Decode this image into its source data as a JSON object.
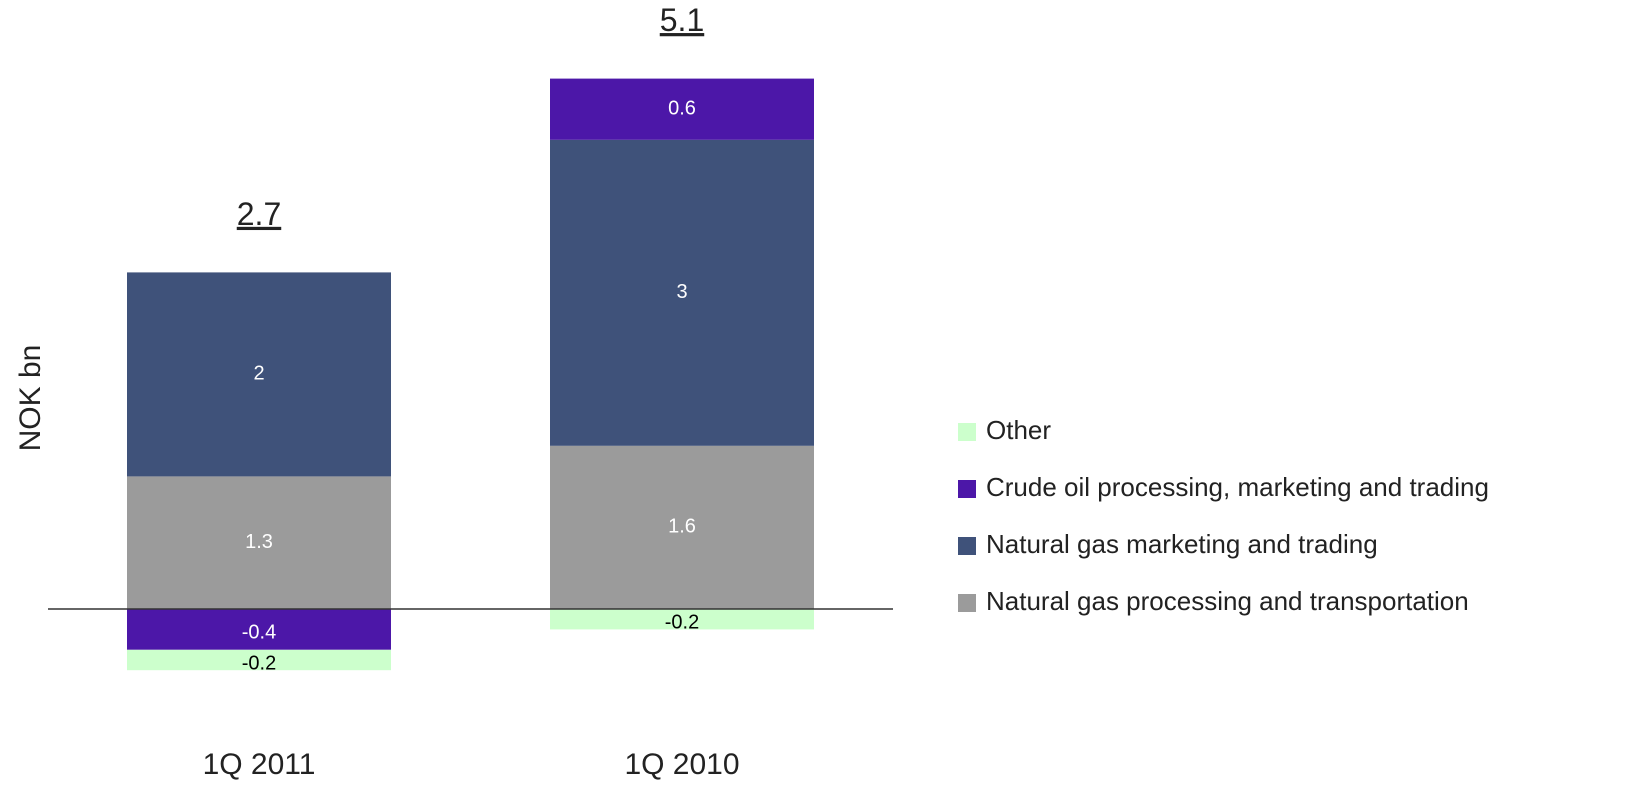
{
  "chart_data": {
    "type": "stacked_bar",
    "ylabel": "NOK bn",
    "categories": [
      "1Q 2011",
      "1Q 2010"
    ],
    "series": [
      {
        "name": "Natural gas processing and transportation",
        "color": "#9b9b9b",
        "values": [
          1.3,
          1.6
        ]
      },
      {
        "name": "Natural gas marketing and trading",
        "color": "#3f527a",
        "values": [
          2.0,
          3.0
        ]
      },
      {
        "name": "Crude oil processing, marketing and trading",
        "color": "#4c17a8",
        "values": [
          -0.4,
          0.6
        ]
      },
      {
        "name": "Other",
        "color": "#ccffcc",
        "values": [
          -0.2,
          -0.2
        ]
      }
    ],
    "totals": [
      2.7,
      5.1
    ],
    "ylim": [
      -0.8,
      5.5
    ],
    "legend": "right"
  }
}
